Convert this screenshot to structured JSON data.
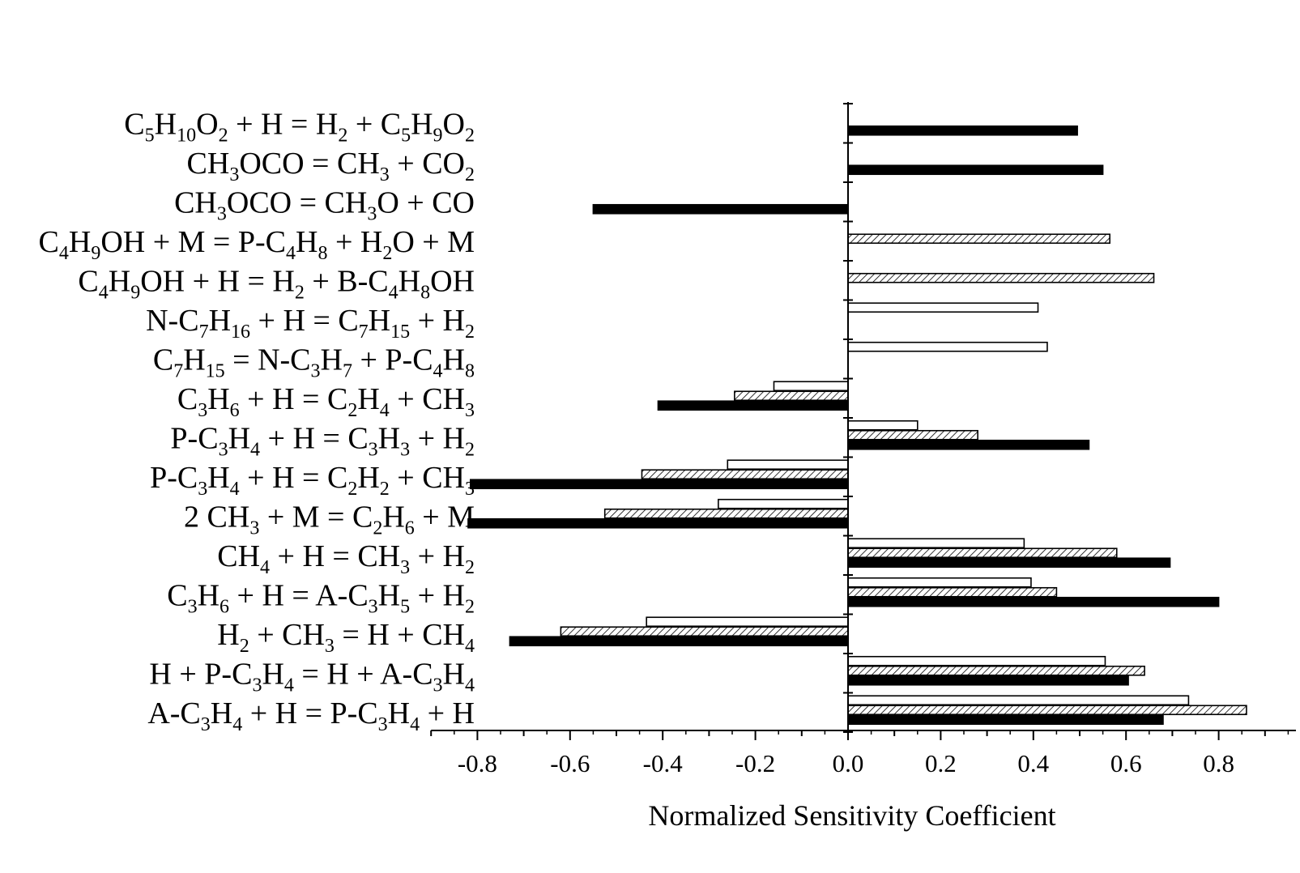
{
  "chart_data": {
    "type": "bar",
    "orientation": "horizontal",
    "xlabel": "Normalized Sensitivity Coefficient",
    "xlim": [
      -0.82,
      0.98
    ],
    "x_ticks": [
      "-0.8",
      "-0.6",
      "-0.4",
      "-0.2",
      "0.0",
      "0.2",
      "0.4",
      "0.6",
      "0.8"
    ],
    "x_tick_values": [
      -0.8,
      -0.6,
      -0.4,
      -0.2,
      0.0,
      0.2,
      0.4,
      0.6,
      0.8
    ],
    "legend": "none",
    "grid": false,
    "bar_styles": [
      "open",
      "hatched",
      "solid"
    ],
    "categories": [
      [
        {
          "t": "C"
        },
        {
          "t": "5",
          "s": "sub"
        },
        {
          "t": "H"
        },
        {
          "t": "10",
          "s": "sub"
        },
        {
          "t": "O"
        },
        {
          "t": "2",
          "s": "sub"
        },
        {
          "t": " + H = H"
        },
        {
          "t": "2",
          "s": "sub"
        },
        {
          "t": " + C"
        },
        {
          "t": "5",
          "s": "sub"
        },
        {
          "t": "H"
        },
        {
          "t": "9",
          "s": "sub"
        },
        {
          "t": "O"
        },
        {
          "t": "2",
          "s": "sub"
        }
      ],
      [
        {
          "t": "CH"
        },
        {
          "t": "3",
          "s": "sub"
        },
        {
          "t": "OCO = CH"
        },
        {
          "t": "3",
          "s": "sub"
        },
        {
          "t": " + CO"
        },
        {
          "t": "2",
          "s": "sub"
        }
      ],
      [
        {
          "t": "CH"
        },
        {
          "t": "3",
          "s": "sub"
        },
        {
          "t": "OCO = CH"
        },
        {
          "t": "3",
          "s": "sub"
        },
        {
          "t": "O + CO"
        }
      ],
      [
        {
          "t": "C"
        },
        {
          "t": "4",
          "s": "sub"
        },
        {
          "t": "H"
        },
        {
          "t": "9",
          "s": "sub"
        },
        {
          "t": "OH + M = P-C"
        },
        {
          "t": "4",
          "s": "sub"
        },
        {
          "t": "H"
        },
        {
          "t": "8",
          "s": "sub"
        },
        {
          "t": " + H"
        },
        {
          "t": "2",
          "s": "sub"
        },
        {
          "t": "O + M"
        }
      ],
      [
        {
          "t": "C"
        },
        {
          "t": "4",
          "s": "sub"
        },
        {
          "t": "H"
        },
        {
          "t": "9",
          "s": "sub"
        },
        {
          "t": "OH + H = H"
        },
        {
          "t": "2",
          "s": "sub"
        },
        {
          "t": " + B-C"
        },
        {
          "t": "4",
          "s": "sub"
        },
        {
          "t": "H"
        },
        {
          "t": "8",
          "s": "sub"
        },
        {
          "t": "OH"
        }
      ],
      [
        {
          "t": "N-C"
        },
        {
          "t": "7",
          "s": "sub"
        },
        {
          "t": "H"
        },
        {
          "t": "16",
          "s": "sub"
        },
        {
          "t": " + H = C"
        },
        {
          "t": "7",
          "s": "sub"
        },
        {
          "t": "H"
        },
        {
          "t": "15",
          "s": "sub"
        },
        {
          "t": " + H"
        },
        {
          "t": "2",
          "s": "sub"
        }
      ],
      [
        {
          "t": "C"
        },
        {
          "t": "7",
          "s": "sub"
        },
        {
          "t": "H"
        },
        {
          "t": "15",
          "s": "sub"
        },
        {
          "t": " = N-C"
        },
        {
          "t": "3",
          "s": "sub"
        },
        {
          "t": "H"
        },
        {
          "t": "7",
          "s": "sub"
        },
        {
          "t": " + P-C"
        },
        {
          "t": "4",
          "s": "sub"
        },
        {
          "t": "H"
        },
        {
          "t": "8",
          "s": "sub"
        }
      ],
      [
        {
          "t": "C"
        },
        {
          "t": "3",
          "s": "sub"
        },
        {
          "t": "H"
        },
        {
          "t": "6",
          "s": "sub"
        },
        {
          "t": " + H = C"
        },
        {
          "t": "2",
          "s": "sub"
        },
        {
          "t": "H"
        },
        {
          "t": "4",
          "s": "sub"
        },
        {
          "t": " + CH"
        },
        {
          "t": "3",
          "s": "sub"
        }
      ],
      [
        {
          "t": "P-C"
        },
        {
          "t": "3",
          "s": "sub"
        },
        {
          "t": "H"
        },
        {
          "t": "4",
          "s": "sub"
        },
        {
          "t": " + H = C"
        },
        {
          "t": "3",
          "s": "sub"
        },
        {
          "t": "H"
        },
        {
          "t": "3",
          "s": "sub"
        },
        {
          "t": " + H"
        },
        {
          "t": "2",
          "s": "sub"
        }
      ],
      [
        {
          "t": "P-C"
        },
        {
          "t": "3",
          "s": "sub"
        },
        {
          "t": "H"
        },
        {
          "t": "4",
          "s": "sub"
        },
        {
          "t": " + H = C"
        },
        {
          "t": "2",
          "s": "sub"
        },
        {
          "t": "H"
        },
        {
          "t": "2",
          "s": "sub"
        },
        {
          "t": " + CH"
        },
        {
          "t": "3",
          "s": "sub"
        }
      ],
      [
        {
          "t": "2 CH"
        },
        {
          "t": "3",
          "s": "sub"
        },
        {
          "t": " + M = C"
        },
        {
          "t": "2",
          "s": "sub"
        },
        {
          "t": "H"
        },
        {
          "t": "6",
          "s": "sub"
        },
        {
          "t": " + M"
        }
      ],
      [
        {
          "t": "CH"
        },
        {
          "t": "4",
          "s": "sub"
        },
        {
          "t": " + H = CH"
        },
        {
          "t": "3",
          "s": "sub"
        },
        {
          "t": " + H"
        },
        {
          "t": "2",
          "s": "sub"
        }
      ],
      [
        {
          "t": "C"
        },
        {
          "t": "3",
          "s": "sub"
        },
        {
          "t": "H"
        },
        {
          "t": "6",
          "s": "sub"
        },
        {
          "t": " + H = A-C"
        },
        {
          "t": "3",
          "s": "sub"
        },
        {
          "t": "H"
        },
        {
          "t": "5",
          "s": "sub"
        },
        {
          "t": " + H"
        },
        {
          "t": "2",
          "s": "sub"
        }
      ],
      [
        {
          "t": "H"
        },
        {
          "t": "2",
          "s": "sub"
        },
        {
          "t": " + CH"
        },
        {
          "t": "3",
          "s": "sub"
        },
        {
          "t": " = H + CH"
        },
        {
          "t": "4",
          "s": "sub"
        }
      ],
      [
        {
          "t": "H + P-C"
        },
        {
          "t": "3",
          "s": "sub"
        },
        {
          "t": "H"
        },
        {
          "t": "4",
          "s": "sub"
        },
        {
          "t": " = H + A-C"
        },
        {
          "t": "3",
          "s": "sub"
        },
        {
          "t": "H"
        },
        {
          "t": "4",
          "s": "sub"
        }
      ],
      [
        {
          "t": "A-C"
        },
        {
          "t": "3",
          "s": "sub"
        },
        {
          "t": "H"
        },
        {
          "t": "4",
          "s": "sub"
        },
        {
          "t": " + H = P-C"
        },
        {
          "t": "3",
          "s": "sub"
        },
        {
          "t": "H"
        },
        {
          "t": "4",
          "s": "sub"
        },
        {
          "t": " + H"
        }
      ]
    ],
    "series": [
      {
        "style": "open",
        "values": [
          null,
          null,
          null,
          null,
          null,
          0.41,
          0.43,
          -0.16,
          0.15,
          -0.26,
          -0.28,
          0.38,
          0.395,
          -0.435,
          0.555,
          0.735
        ]
      },
      {
        "style": "hatched",
        "values": [
          null,
          null,
          null,
          0.565,
          0.66,
          null,
          null,
          -0.245,
          0.28,
          -0.445,
          -0.525,
          0.58,
          0.45,
          -0.62,
          0.64,
          0.86
        ]
      },
      {
        "style": "solid",
        "values": [
          0.495,
          0.55,
          -0.55,
          null,
          null,
          null,
          null,
          -0.41,
          0.52,
          -0.815,
          -0.82,
          0.695,
          0.8,
          -0.73,
          0.605,
          0.68
        ]
      }
    ]
  }
}
